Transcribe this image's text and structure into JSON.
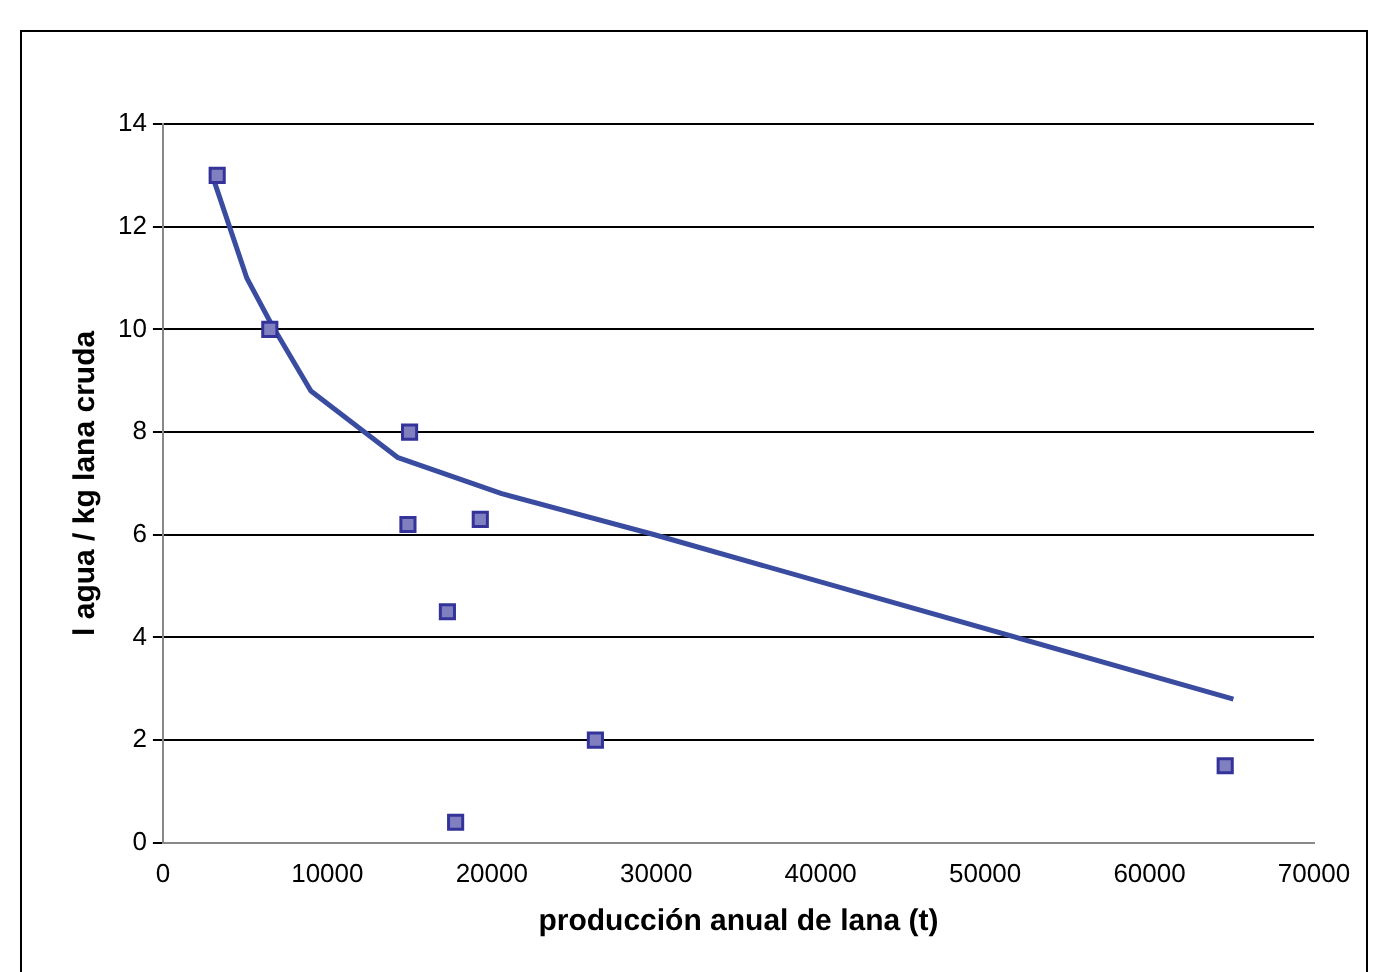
{
  "chart_data": {
    "type": "scatter",
    "xlabel": "producción anual de lana (t)",
    "ylabel": "l agua / kg lana cruda",
    "xlim": [
      0,
      70000
    ],
    "xticks": [
      0,
      10000,
      20000,
      30000,
      40000,
      50000,
      60000,
      70000
    ],
    "ylim": [
      0,
      14
    ],
    "yticks": [
      0,
      2,
      4,
      6,
      8,
      10,
      12,
      14
    ],
    "grid": "y",
    "legend": false,
    "series": [
      {
        "color": "#333399",
        "marker": "square",
        "x": [
          3300,
          6500,
          15000,
          14900,
          19300,
          17300,
          26300,
          17800,
          64600
        ],
        "values": [
          13,
          10,
          8,
          6.2,
          6.3,
          4.5,
          2,
          0.4,
          1.5
        ]
      },
      {
        "type": "line",
        "color": "#3a4ca0",
        "marker": "none",
        "line_style": "solid",
        "x": [
          3000,
          5100,
          6600,
          9000,
          14300,
          20600,
          29900,
          43100,
          65100
        ],
        "values": [
          13,
          11,
          10.1,
          8.8,
          7.5,
          6.8,
          6,
          4.8,
          2.8
        ]
      }
    ]
  }
}
